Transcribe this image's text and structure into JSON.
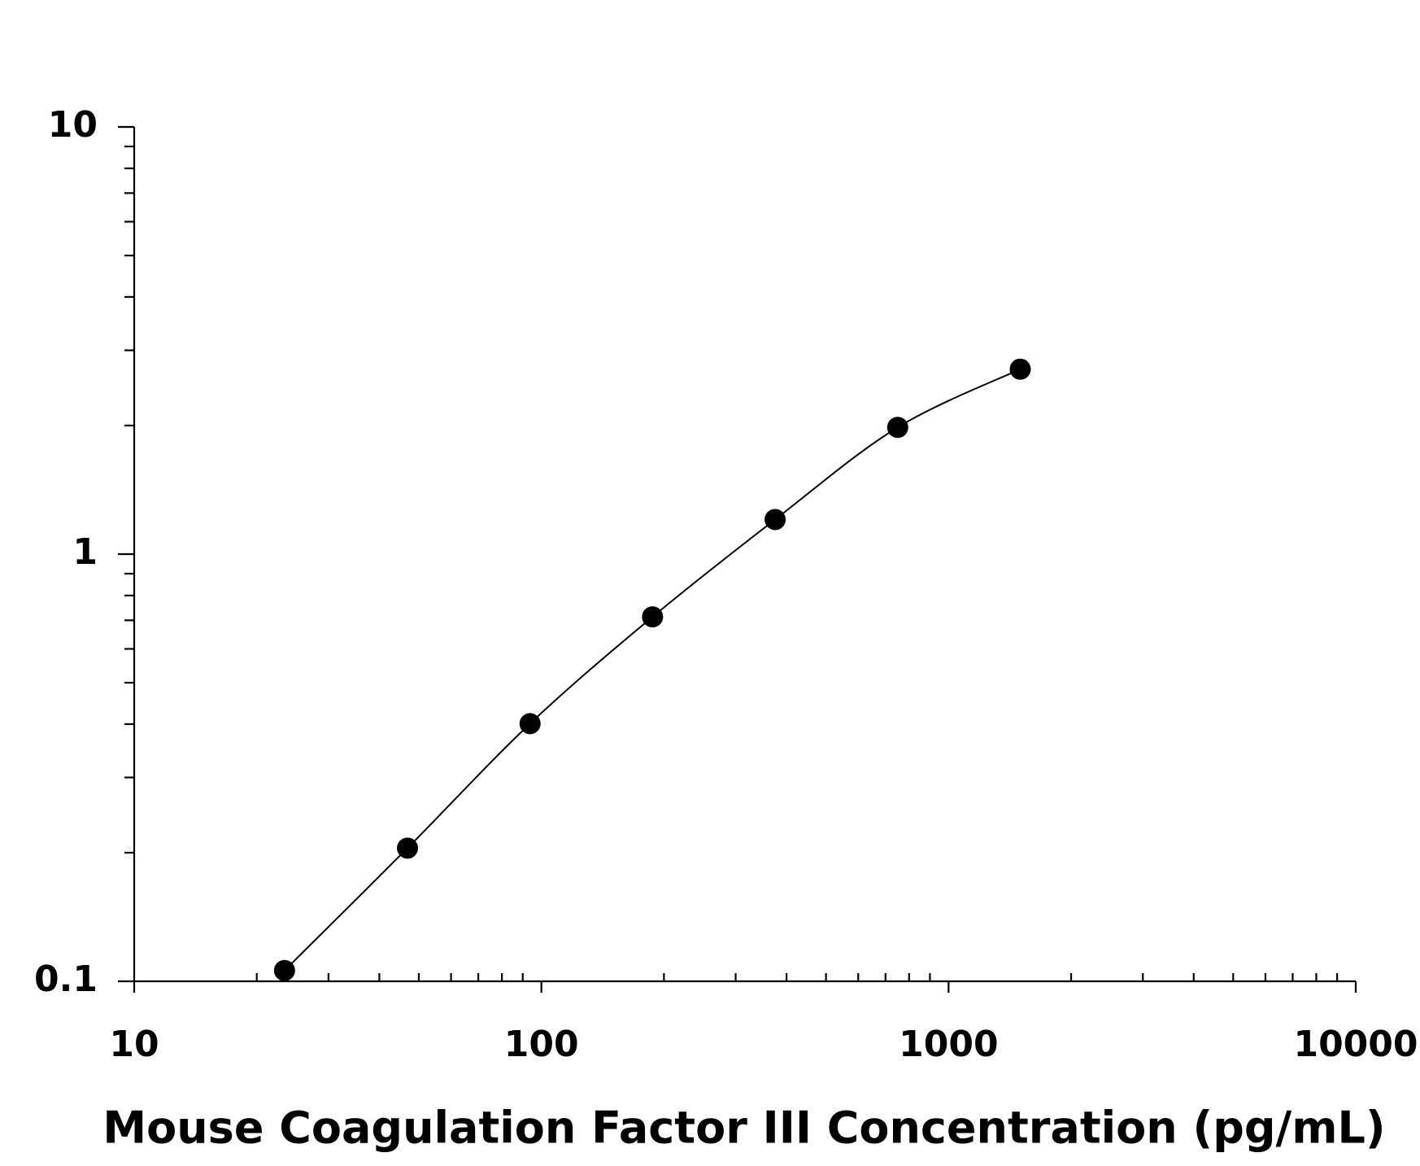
{
  "chart_data": {
    "type": "scatter",
    "x_label": "Mouse Coagulation Factor III Concentration (pg/mL)",
    "x": [
      23.4,
      46.9,
      93.8,
      187.5,
      375,
      750,
      1500
    ],
    "series": [
      {
        "color": "#000000",
        "values": [
          0.106,
          0.205,
          0.401,
          0.713,
          1.205,
          1.98,
          2.71
        ]
      }
    ],
    "xlim": [
      10,
      10000
    ],
    "ylim": [
      0.1,
      10
    ],
    "xticks": [
      10,
      100,
      1000,
      10000
    ],
    "yticks": [
      0.1,
      1,
      10
    ],
    "xscale": "log",
    "yscale": "log",
    "fit_curve": true,
    "minor_ticks": true
  }
}
